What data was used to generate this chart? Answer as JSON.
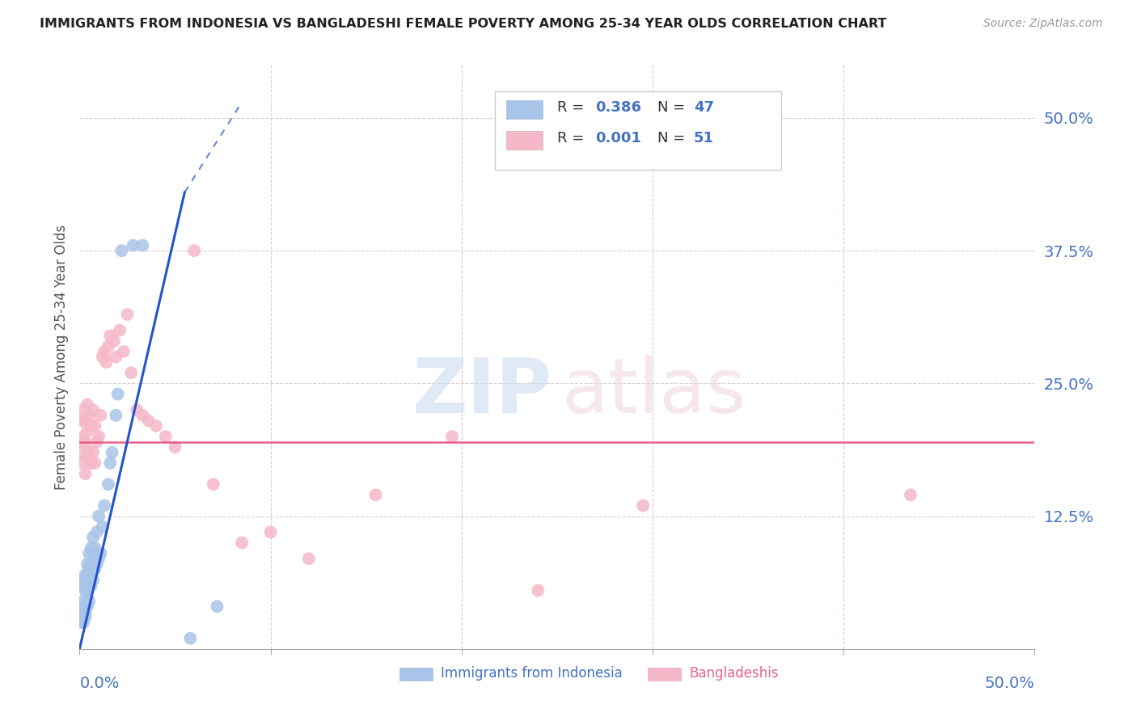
{
  "title": "IMMIGRANTS FROM INDONESIA VS BANGLADESHI FEMALE POVERTY AMONG 25-34 YEAR OLDS CORRELATION CHART",
  "source": "Source: ZipAtlas.com",
  "ylabel": "Female Poverty Among 25-34 Year Olds",
  "ytick_labels": [
    "50.0%",
    "37.5%",
    "25.0%",
    "12.5%"
  ],
  "ytick_values": [
    0.5,
    0.375,
    0.25,
    0.125
  ],
  "xlim": [
    0.0,
    0.5
  ],
  "ylim": [
    0.0,
    0.55
  ],
  "color_indonesia": "#a8c4e8",
  "color_bangladesh": "#f5b8c8",
  "color_trend_indonesia": "#2255cc",
  "color_trend_bangladesh": "#e8507a",
  "watermark_zip": "ZIP",
  "watermark_atlas": "atlas",
  "horizontal_line_y": 0.195,
  "indo_trend_x0": 0.0,
  "indo_trend_y0": 0.0,
  "indo_trend_x1": 0.055,
  "indo_trend_y1": 0.43,
  "indo_trend_dash_x1": 0.085,
  "indo_trend_dash_y1": 0.515,
  "bang_trend_y": 0.195,
  "indonesia_x": [
    0.001,
    0.001,
    0.001,
    0.001,
    0.002,
    0.002,
    0.002,
    0.002,
    0.002,
    0.003,
    0.003,
    0.003,
    0.003,
    0.003,
    0.004,
    0.004,
    0.004,
    0.004,
    0.005,
    0.005,
    0.005,
    0.005,
    0.006,
    0.006,
    0.006,
    0.007,
    0.007,
    0.007,
    0.008,
    0.008,
    0.009,
    0.009,
    0.01,
    0.01,
    0.011,
    0.012,
    0.013,
    0.015,
    0.016,
    0.017,
    0.019,
    0.02,
    0.022,
    0.028,
    0.033,
    0.058,
    0.072
  ],
  "indonesia_y": [
    0.025,
    0.035,
    0.04,
    0.06,
    0.025,
    0.03,
    0.045,
    0.06,
    0.065,
    0.03,
    0.035,
    0.055,
    0.06,
    0.07,
    0.04,
    0.055,
    0.07,
    0.08,
    0.045,
    0.065,
    0.075,
    0.09,
    0.06,
    0.08,
    0.095,
    0.065,
    0.09,
    0.105,
    0.075,
    0.095,
    0.08,
    0.11,
    0.085,
    0.125,
    0.09,
    0.115,
    0.135,
    0.155,
    0.175,
    0.185,
    0.22,
    0.24,
    0.375,
    0.38,
    0.38,
    0.01,
    0.04
  ],
  "bangladesh_x": [
    0.001,
    0.001,
    0.001,
    0.002,
    0.002,
    0.002,
    0.002,
    0.003,
    0.003,
    0.003,
    0.004,
    0.004,
    0.004,
    0.005,
    0.005,
    0.006,
    0.006,
    0.007,
    0.007,
    0.008,
    0.008,
    0.009,
    0.01,
    0.011,
    0.012,
    0.013,
    0.014,
    0.015,
    0.016,
    0.018,
    0.019,
    0.021,
    0.023,
    0.025,
    0.027,
    0.03,
    0.033,
    0.036,
    0.04,
    0.045,
    0.05,
    0.06,
    0.07,
    0.085,
    0.1,
    0.12,
    0.155,
    0.195,
    0.24,
    0.295,
    0.435
  ],
  "bangladesh_y": [
    0.185,
    0.195,
    0.215,
    0.175,
    0.2,
    0.215,
    0.225,
    0.165,
    0.195,
    0.215,
    0.18,
    0.205,
    0.23,
    0.185,
    0.22,
    0.175,
    0.21,
    0.185,
    0.225,
    0.175,
    0.21,
    0.195,
    0.2,
    0.22,
    0.275,
    0.28,
    0.27,
    0.285,
    0.295,
    0.29,
    0.275,
    0.3,
    0.28,
    0.315,
    0.26,
    0.225,
    0.22,
    0.215,
    0.21,
    0.2,
    0.19,
    0.375,
    0.155,
    0.1,
    0.11,
    0.085,
    0.145,
    0.2,
    0.055,
    0.135,
    0.145
  ]
}
